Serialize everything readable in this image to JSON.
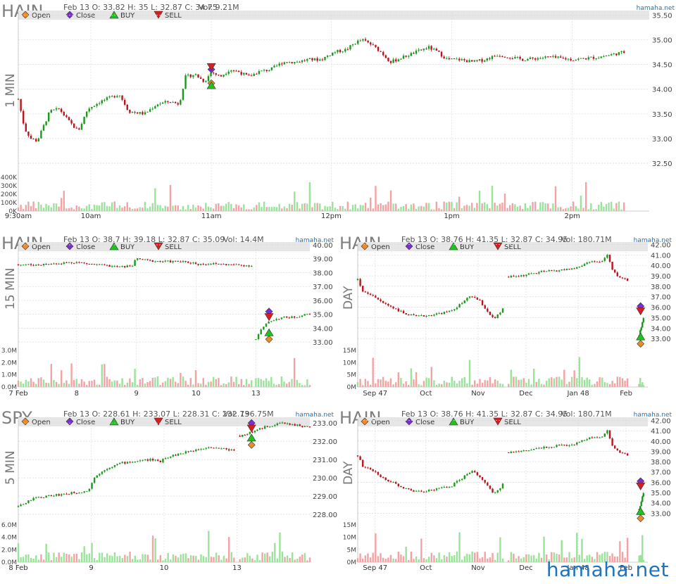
{
  "site": "hamaha.net",
  "legend": [
    "Open",
    "Close",
    "BUY",
    "SELL"
  ],
  "colors": {
    "up": "#1a9a1a",
    "down": "#b8141e",
    "up_vol": "#9be39b",
    "down_vol": "#f3a3a3",
    "open_marker": "#f08a24",
    "close_marker": "#7b2fd0",
    "buy_marker": "#1fc21f",
    "sell_marker": "#d81e1e",
    "legend_bar": "#e6e6e6",
    "grid": "#d9d9d9",
    "title": "#7f7f7f",
    "watermark": "#1e73be"
  },
  "chart_data": [
    {
      "type": "candlestick",
      "symbol": "HAIN",
      "period": "1 MIN",
      "summary": "Feb 13 O: 33.82 H: 35 L: 32.87 C: 34.75",
      "volume_text": "Vol: 9.21M",
      "price_ticks": [
        "35.50",
        "35.00",
        "34.50",
        "34.00",
        "33.50",
        "33.00",
        "32.50"
      ],
      "ylim": [
        32.3,
        35.55
      ],
      "vol_ticks": [
        "400K",
        "300K",
        "200K",
        "100K",
        "0K"
      ],
      "vol_max": 420000,
      "x_ticks": [
        {
          "label": "9:30am",
          "at": 0.0
        },
        {
          "label": "10am",
          "at": 0.115
        },
        {
          "label": "11am",
          "at": 0.306
        },
        {
          "label": "12pm",
          "at": 0.496
        },
        {
          "label": "1pm",
          "at": 0.687
        },
        {
          "label": "2pm",
          "at": 0.878
        }
      ],
      "price_path": [
        [
          0.0,
          33.8
        ],
        [
          0.01,
          33.2
        ],
        [
          0.02,
          33.0
        ],
        [
          0.03,
          32.95
        ],
        [
          0.05,
          33.55
        ],
        [
          0.065,
          33.6
        ],
        [
          0.08,
          33.35
        ],
        [
          0.095,
          33.15
        ],
        [
          0.11,
          33.6
        ],
        [
          0.13,
          33.75
        ],
        [
          0.15,
          33.85
        ],
        [
          0.16,
          33.9
        ],
        [
          0.175,
          33.55
        ],
        [
          0.2,
          33.5
        ],
        [
          0.22,
          33.7
        ],
        [
          0.24,
          33.75
        ],
        [
          0.255,
          33.7
        ],
        [
          0.265,
          34.25
        ],
        [
          0.28,
          34.3
        ],
        [
          0.295,
          34.15
        ],
        [
          0.306,
          34.35
        ],
        [
          0.32,
          34.25
        ],
        [
          0.335,
          34.4
        ],
        [
          0.35,
          34.35
        ],
        [
          0.365,
          34.25
        ],
        [
          0.38,
          34.35
        ],
        [
          0.4,
          34.4
        ],
        [
          0.42,
          34.55
        ],
        [
          0.44,
          34.55
        ],
        [
          0.46,
          34.6
        ],
        [
          0.48,
          34.6
        ],
        [
          0.5,
          34.75
        ],
        [
          0.52,
          34.8
        ],
        [
          0.535,
          34.95
        ],
        [
          0.545,
          35.0
        ],
        [
          0.56,
          34.9
        ],
        [
          0.575,
          34.75
        ],
        [
          0.59,
          34.55
        ],
        [
          0.61,
          34.65
        ],
        [
          0.63,
          34.75
        ],
        [
          0.65,
          34.85
        ],
        [
          0.665,
          34.75
        ],
        [
          0.68,
          34.6
        ],
        [
          0.7,
          34.6
        ],
        [
          0.72,
          34.55
        ],
        [
          0.74,
          34.6
        ],
        [
          0.76,
          34.7
        ],
        [
          0.78,
          34.65
        ],
        [
          0.8,
          34.6
        ],
        [
          0.84,
          34.65
        ],
        [
          0.88,
          34.6
        ],
        [
          0.92,
          34.65
        ],
        [
          0.96,
          34.75
        ]
      ],
      "trade_markers": {
        "x": 0.306,
        "open": 34.12,
        "close": 34.4,
        "buy": 34.08,
        "sell": 34.45
      }
    },
    {
      "type": "candlestick",
      "symbol": "HAIN",
      "period": "15 MIN",
      "summary": "Feb 13 O: 38.7 H: 39.18 L: 32.87 C: 35.09",
      "volume_text": "Vol: 14.4M",
      "price_ticks": [
        "40.00",
        "39.00",
        "38.00",
        "37.00",
        "36.00",
        "35.00",
        "34.00",
        "33.00"
      ],
      "ylim": [
        32.5,
        40.1
      ],
      "vol_ticks": [
        "3.0M",
        "2.0M",
        "1.0M",
        "0.0M"
      ],
      "vol_max": 3500000,
      "x_ticks": [
        {
          "label": "7 Feb",
          "at": 0.0
        },
        {
          "label": "8",
          "at": 0.2
        },
        {
          "label": "9",
          "at": 0.405
        },
        {
          "label": "10",
          "at": 0.61
        },
        {
          "label": "13",
          "at": 0.815
        }
      ],
      "price_path": [
        [
          0.0,
          38.6
        ],
        [
          0.05,
          38.55
        ],
        [
          0.1,
          38.6
        ],
        [
          0.15,
          38.7
        ],
        [
          0.2,
          38.75
        ],
        [
          0.25,
          38.6
        ],
        [
          0.3,
          38.5
        ],
        [
          0.35,
          38.4
        ],
        [
          0.39,
          38.5
        ],
        [
          0.405,
          39.0
        ],
        [
          0.45,
          38.85
        ],
        [
          0.5,
          38.8
        ],
        [
          0.55,
          38.8
        ],
        [
          0.6,
          38.7
        ],
        [
          0.62,
          38.6
        ],
        [
          0.65,
          38.65
        ],
        [
          0.7,
          38.6
        ],
        [
          0.75,
          38.55
        ],
        [
          0.8,
          38.5
        ],
        [
          0.815,
          null
        ],
        [
          0.815,
          33.2
        ],
        [
          0.83,
          33.8
        ],
        [
          0.86,
          34.5
        ],
        [
          0.9,
          34.75
        ],
        [
          0.95,
          34.8
        ],
        [
          1.0,
          35.05
        ]
      ],
      "trade_markers": {
        "x": 0.86,
        "open": 33.2,
        "close": 35.2,
        "buy": 33.7,
        "sell": 34.8
      }
    },
    {
      "type": "candlestick",
      "symbol": "HAIN",
      "period": "DAY",
      "summary": "Feb 13 O: 38.76 H: 41.35 L: 32.87 C: 34.95",
      "volume_text": "Vol: 180.71M",
      "price_ticks": [
        "42.00",
        "41.00",
        "40.00",
        "39.00",
        "38.00",
        "37.00",
        "36.00",
        "35.00",
        "34.00",
        "33.00"
      ],
      "ylim": [
        32.0,
        42.1
      ],
      "vol_ticks": [
        "15M",
        "10M",
        "5M",
        "0M"
      ],
      "vol_max": 17000000,
      "x_ticks": [
        {
          "label": "Sep 47",
          "at": 0.06
        },
        {
          "label": "Oct",
          "at": 0.235
        },
        {
          "label": "Nov",
          "at": 0.415
        },
        {
          "label": "Dec",
          "at": 0.58
        },
        {
          "label": "Jan 48",
          "at": 0.76
        },
        {
          "label": "Feb",
          "at": 0.925
        }
      ],
      "price_path": [
        [
          0.0,
          38.6
        ],
        [
          0.02,
          37.4
        ],
        [
          0.05,
          37.2
        ],
        [
          0.08,
          36.5
        ],
        [
          0.12,
          36.0
        ],
        [
          0.16,
          35.4
        ],
        [
          0.2,
          35.1
        ],
        [
          0.24,
          35.2
        ],
        [
          0.28,
          35.4
        ],
        [
          0.32,
          35.6
        ],
        [
          0.36,
          36.4
        ],
        [
          0.39,
          37.1
        ],
        [
          0.42,
          36.6
        ],
        [
          0.45,
          35.5
        ],
        [
          0.47,
          34.8
        ],
        [
          0.5,
          35.8
        ],
        [
          0.51,
          null
        ],
        [
          0.52,
          38.9
        ],
        [
          0.56,
          39.0
        ],
        [
          0.6,
          39.2
        ],
        [
          0.64,
          39.4
        ],
        [
          0.68,
          39.5
        ],
        [
          0.72,
          39.6
        ],
        [
          0.76,
          39.8
        ],
        [
          0.8,
          40.4
        ],
        [
          0.84,
          40.3
        ],
        [
          0.86,
          41.0
        ],
        [
          0.88,
          39.4
        ],
        [
          0.9,
          38.9
        ],
        [
          0.93,
          38.6
        ],
        [
          0.94,
          null
        ],
        [
          0.97,
          33.3
        ],
        [
          0.985,
          35.0
        ]
      ],
      "trade_markers": {
        "x": 0.975,
        "open": 32.5,
        "close": 36.1,
        "buy": 33.2,
        "sell": 35.6
      }
    },
    {
      "type": "candlestick",
      "symbol": "SPY",
      "period": "5 MIN",
      "summary": "Feb 13 O: 228.61 H: 233.07 L: 228.31 C: 232.73",
      "volume_text": "Vol: 196.75M",
      "price_ticks": [
        "233.00",
        "232.00",
        "231.00",
        "230.00",
        "229.00",
        "228.00"
      ],
      "ylim": [
        227.5,
        233.2
      ],
      "vol_ticks": [
        "6.0M",
        "4.0M",
        "2.0M",
        "0.0M"
      ],
      "vol_max": 6500000,
      "x_ticks": [
        {
          "label": "8 Feb",
          "at": 0.0
        },
        {
          "label": "9",
          "at": 0.25
        },
        {
          "label": "10",
          "at": 0.5
        },
        {
          "label": "13",
          "at": 0.75
        }
      ],
      "price_path": [
        [
          0.0,
          228.4
        ],
        [
          0.03,
          228.7
        ],
        [
          0.06,
          228.9
        ],
        [
          0.1,
          229.0
        ],
        [
          0.15,
          229.1
        ],
        [
          0.2,
          229.2
        ],
        [
          0.24,
          229.3
        ],
        [
          0.26,
          230.0
        ],
        [
          0.3,
          230.5
        ],
        [
          0.35,
          230.8
        ],
        [
          0.4,
          230.9
        ],
        [
          0.45,
          231.0
        ],
        [
          0.49,
          230.9
        ],
        [
          0.5,
          231.1
        ],
        [
          0.55,
          231.3
        ],
        [
          0.6,
          231.5
        ],
        [
          0.65,
          231.7
        ],
        [
          0.7,
          231.6
        ],
        [
          0.74,
          231.5
        ],
        [
          0.75,
          null
        ],
        [
          0.76,
          232.3
        ],
        [
          0.8,
          232.5
        ],
        [
          0.85,
          232.8
        ],
        [
          0.9,
          233.0
        ],
        [
          0.95,
          232.9
        ],
        [
          1.0,
          232.75
        ]
      ],
      "trade_markers": {
        "x": 0.8,
        "open": 231.8,
        "close": 233.0,
        "buy": 232.2,
        "sell": 232.7
      }
    },
    {
      "type": "candlestick",
      "symbol": "HAIN",
      "period": "DAY",
      "summary": "Feb 13 O: 38.76 H: 41.35 L: 32.87 C: 34.95",
      "volume_text": "Vol: 180.71M",
      "price_ticks": [
        "42.00",
        "41.00",
        "40.00",
        "39.00",
        "38.00",
        "37.00",
        "36.00",
        "35.00",
        "34.00",
        "33.00"
      ],
      "ylim": [
        32.0,
        42.1
      ],
      "vol_ticks": [
        "15M",
        "10M",
        "5M",
        "0M"
      ],
      "vol_max": 17000000,
      "x_ticks": [
        {
          "label": "Sep 47",
          "at": 0.06
        },
        {
          "label": "Oct",
          "at": 0.235
        },
        {
          "label": "Nov",
          "at": 0.415
        },
        {
          "label": "Dec",
          "at": 0.58
        },
        {
          "label": "Jan 48",
          "at": 0.76
        },
        {
          "label": "Feb",
          "at": 0.925
        }
      ],
      "price_path": [
        [
          0.0,
          38.6
        ],
        [
          0.02,
          37.4
        ],
        [
          0.05,
          37.2
        ],
        [
          0.08,
          36.5
        ],
        [
          0.12,
          36.0
        ],
        [
          0.16,
          35.4
        ],
        [
          0.2,
          35.1
        ],
        [
          0.24,
          35.2
        ],
        [
          0.28,
          35.4
        ],
        [
          0.32,
          35.6
        ],
        [
          0.36,
          36.4
        ],
        [
          0.39,
          37.1
        ],
        [
          0.42,
          36.6
        ],
        [
          0.45,
          35.5
        ],
        [
          0.47,
          34.8
        ],
        [
          0.5,
          35.8
        ],
        [
          0.51,
          null
        ],
        [
          0.52,
          38.9
        ],
        [
          0.56,
          39.0
        ],
        [
          0.6,
          39.2
        ],
        [
          0.64,
          39.4
        ],
        [
          0.68,
          39.5
        ],
        [
          0.72,
          39.6
        ],
        [
          0.76,
          39.8
        ],
        [
          0.8,
          40.4
        ],
        [
          0.84,
          40.3
        ],
        [
          0.86,
          41.0
        ],
        [
          0.88,
          39.4
        ],
        [
          0.9,
          38.9
        ],
        [
          0.93,
          38.6
        ],
        [
          0.94,
          null
        ],
        [
          0.97,
          33.3
        ],
        [
          0.985,
          35.0
        ]
      ],
      "trade_markers": {
        "x": 0.975,
        "open": 32.5,
        "close": 36.1,
        "buy": 33.2,
        "sell": 35.6
      }
    }
  ]
}
